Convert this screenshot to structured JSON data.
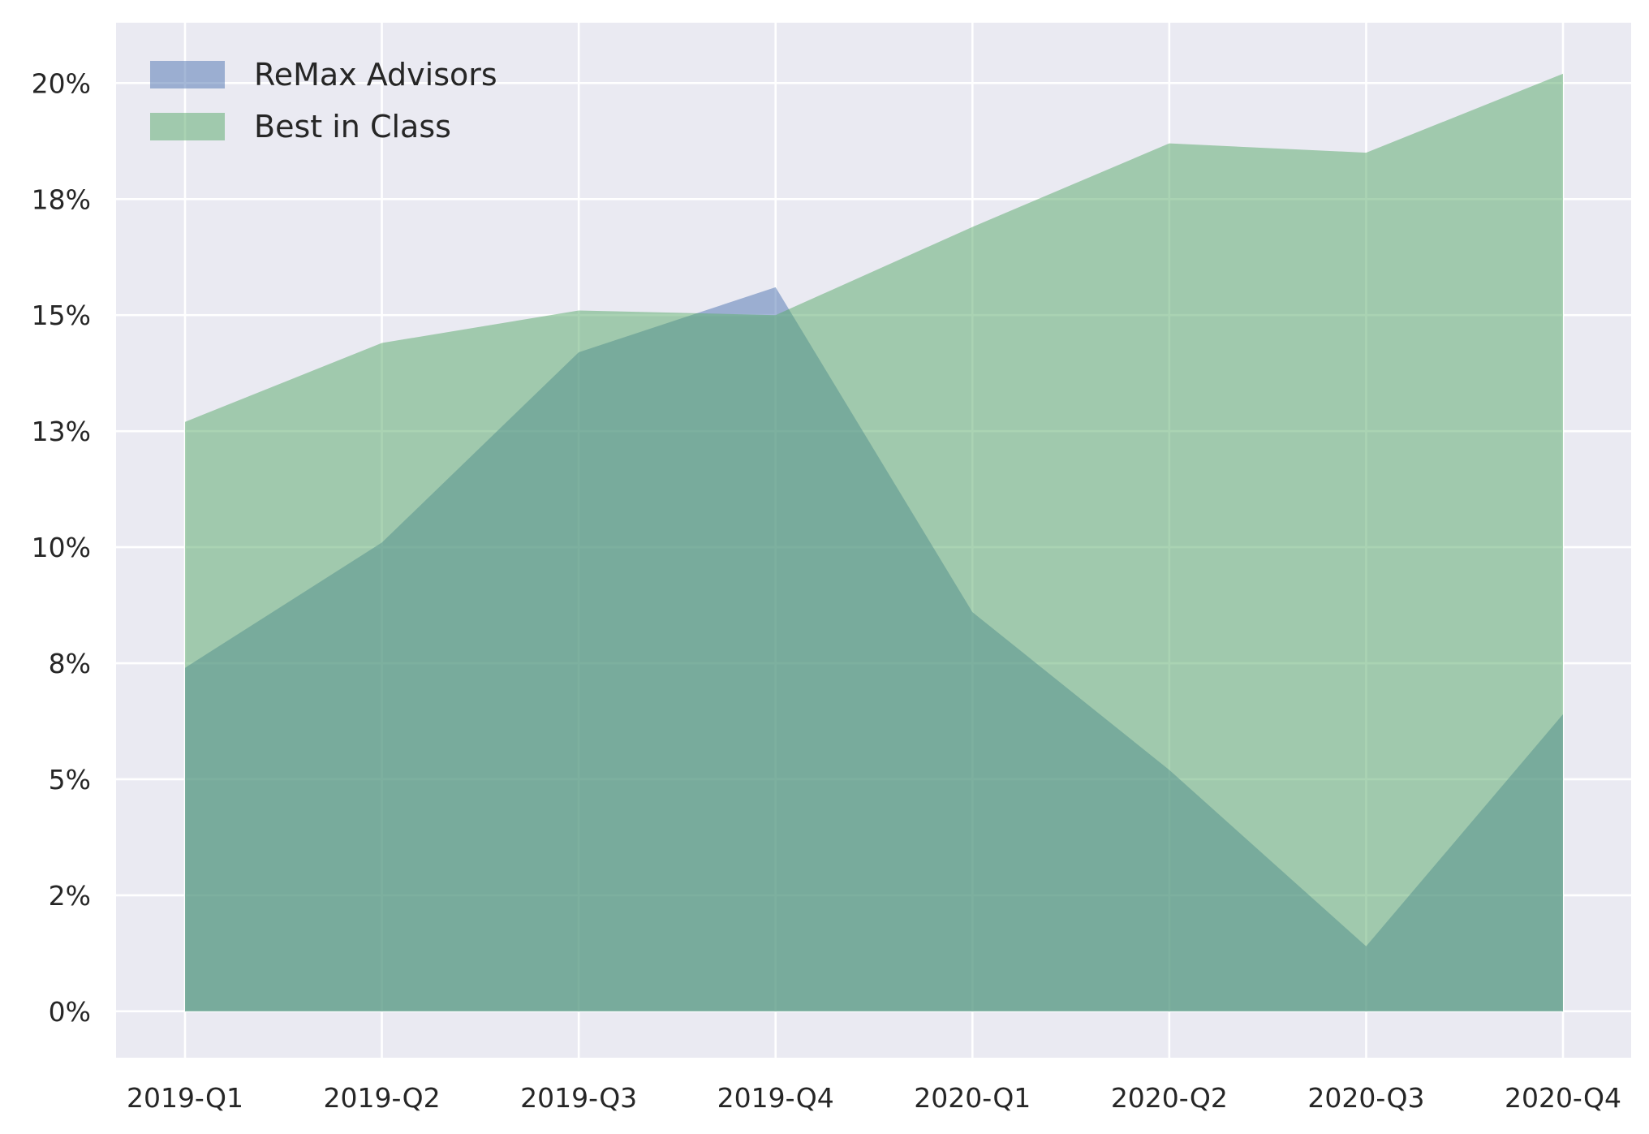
{
  "chart_data": {
    "type": "area",
    "categories": [
      "2019-Q1",
      "2019-Q2",
      "2019-Q3",
      "2019-Q4",
      "2020-Q1",
      "2020-Q2",
      "2020-Q3",
      "2020-Q4"
    ],
    "series": [
      {
        "name": "ReMax Advisors",
        "color": "#4c72b0",
        "values": [
          7.4,
          10.1,
          14.2,
          15.6,
          8.6,
          5.2,
          1.4,
          6.4
        ]
      },
      {
        "name": "Best in Class",
        "color": "#55a868",
        "values": [
          12.7,
          14.4,
          15.1,
          15.0,
          16.9,
          18.7,
          18.5,
          20.2
        ]
      }
    ],
    "yticks": [
      0,
      2.5,
      5,
      7.5,
      10,
      12.5,
      15,
      17.5,
      20
    ],
    "ytick_labels": [
      "0%",
      "2%",
      "5%",
      "8%",
      "10%",
      "13%",
      "15%",
      "18%",
      "20%"
    ],
    "ylim": [
      -1,
      21.3
    ],
    "grid": true,
    "legend": "top-left",
    "background": "#eaeaf2",
    "fill_opacity": 0.5
  }
}
